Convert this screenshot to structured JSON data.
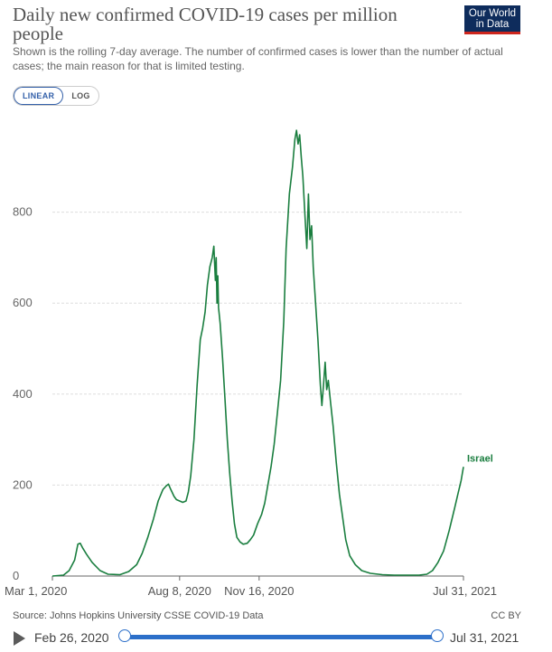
{
  "header": {
    "title": "Daily new confirmed COVID-19 cases per million people",
    "subtitle": "Shown is the rolling 7-day average. The number of confirmed cases is lower than the number of actual cases; the main reason for that is limited testing.",
    "logo_line1": "Our World",
    "logo_line2": "in Data"
  },
  "scale_toggle": {
    "linear_label": "LINEAR",
    "log_label": "LOG",
    "selected": "linear"
  },
  "footer": {
    "source": "Source: Johns Hopkins University CSSE COVID-19 Data",
    "license": "CC BY"
  },
  "timeline": {
    "start_label": "Feb 26, 2020",
    "end_label": "Jul 31, 2021"
  },
  "colors": {
    "series": "#1a7e3f",
    "grid": "#dddddd",
    "axis": "#666666",
    "logo_bg": "#0e2c5c",
    "logo_accent": "#ce261e",
    "slider": "#2c6fc9"
  },
  "chart_data": {
    "type": "line",
    "title": "Daily new confirmed COVID-19 cases per million people",
    "xlabel": "",
    "ylabel": "",
    "xlim": [
      "2020-03-01",
      "2021-07-31"
    ],
    "ylim": [
      0,
      1000
    ],
    "yticks": [
      0,
      200,
      400,
      600,
      800
    ],
    "xtick_labels": [
      {
        "date": "2020-03-01",
        "label": "Mar 1, 2020"
      },
      {
        "date": "2020-08-08",
        "label": "Aug 8, 2020"
      },
      {
        "date": "2020-11-16",
        "label": "Nov 16, 2020"
      },
      {
        "date": "2021-07-31",
        "label": "Jul 31, 2021"
      }
    ],
    "grid": true,
    "series": [
      {
        "name": "Israel",
        "points": [
          [
            "2020-03-01",
            0
          ],
          [
            "2020-03-15",
            2
          ],
          [
            "2020-03-22",
            12
          ],
          [
            "2020-03-29",
            35
          ],
          [
            "2020-04-02",
            70
          ],
          [
            "2020-04-05",
            72
          ],
          [
            "2020-04-08",
            62
          ],
          [
            "2020-04-13",
            48
          ],
          [
            "2020-04-20",
            30
          ],
          [
            "2020-04-30",
            12
          ],
          [
            "2020-05-10",
            4
          ],
          [
            "2020-05-25",
            3
          ],
          [
            "2020-06-05",
            10
          ],
          [
            "2020-06-15",
            25
          ],
          [
            "2020-06-22",
            50
          ],
          [
            "2020-06-29",
            85
          ],
          [
            "2020-07-06",
            125
          ],
          [
            "2020-07-12",
            165
          ],
          [
            "2020-07-18",
            190
          ],
          [
            "2020-07-22",
            198
          ],
          [
            "2020-07-25",
            202
          ],
          [
            "2020-07-28",
            190
          ],
          [
            "2020-08-01",
            175
          ],
          [
            "2020-08-04",
            168
          ],
          [
            "2020-08-08",
            165
          ],
          [
            "2020-08-12",
            162
          ],
          [
            "2020-08-16",
            165
          ],
          [
            "2020-08-19",
            185
          ],
          [
            "2020-08-22",
            220
          ],
          [
            "2020-08-26",
            300
          ],
          [
            "2020-08-30",
            420
          ],
          [
            "2020-09-03",
            520
          ],
          [
            "2020-09-06",
            545
          ],
          [
            "2020-09-09",
            580
          ],
          [
            "2020-09-12",
            640
          ],
          [
            "2020-09-15",
            680
          ],
          [
            "2020-09-18",
            700
          ],
          [
            "2020-09-20",
            725
          ],
          [
            "2020-09-22",
            650
          ],
          [
            "2020-09-23",
            700
          ],
          [
            "2020-09-24",
            600
          ],
          [
            "2020-09-25",
            660
          ],
          [
            "2020-09-26",
            590
          ],
          [
            "2020-09-28",
            555
          ],
          [
            "2020-10-01",
            480
          ],
          [
            "2020-10-04",
            390
          ],
          [
            "2020-10-07",
            300
          ],
          [
            "2020-10-10",
            225
          ],
          [
            "2020-10-13",
            165
          ],
          [
            "2020-10-16",
            115
          ],
          [
            "2020-10-19",
            85
          ],
          [
            "2020-10-23",
            75
          ],
          [
            "2020-10-27",
            70
          ],
          [
            "2020-11-01",
            72
          ],
          [
            "2020-11-05",
            80
          ],
          [
            "2020-11-09",
            90
          ],
          [
            "2020-11-14",
            115
          ],
          [
            "2020-11-19",
            135
          ],
          [
            "2020-11-23",
            160
          ],
          [
            "2020-11-27",
            200
          ],
          [
            "2020-12-01",
            240
          ],
          [
            "2020-12-05",
            290
          ],
          [
            "2020-12-09",
            360
          ],
          [
            "2020-12-13",
            430
          ],
          [
            "2020-12-17",
            560
          ],
          [
            "2020-12-20",
            720
          ],
          [
            "2020-12-24",
            840
          ],
          [
            "2020-12-28",
            900
          ],
          [
            "2020-12-31",
            960
          ],
          [
            "2021-01-02",
            980
          ],
          [
            "2021-01-04",
            950
          ],
          [
            "2021-01-06",
            970
          ],
          [
            "2021-01-08",
            920
          ],
          [
            "2021-01-10",
            880
          ],
          [
            "2021-01-13",
            780
          ],
          [
            "2021-01-15",
            720
          ],
          [
            "2021-01-17",
            840
          ],
          [
            "2021-01-19",
            740
          ],
          [
            "2021-01-21",
            770
          ],
          [
            "2021-01-23",
            680
          ],
          [
            "2021-01-26",
            600
          ],
          [
            "2021-01-29",
            520
          ],
          [
            "2021-02-01",
            420
          ],
          [
            "2021-02-03",
            375
          ],
          [
            "2021-02-05",
            420
          ],
          [
            "2021-02-07",
            470
          ],
          [
            "2021-02-09",
            410
          ],
          [
            "2021-02-11",
            430
          ],
          [
            "2021-02-14",
            380
          ],
          [
            "2021-02-17",
            330
          ],
          [
            "2021-02-21",
            250
          ],
          [
            "2021-02-25",
            180
          ],
          [
            "2021-03-01",
            130
          ],
          [
            "2021-03-05",
            80
          ],
          [
            "2021-03-10",
            45
          ],
          [
            "2021-03-17",
            25
          ],
          [
            "2021-03-25",
            12
          ],
          [
            "2021-04-05",
            6
          ],
          [
            "2021-04-20",
            3
          ],
          [
            "2021-05-05",
            2
          ],
          [
            "2021-05-20",
            2
          ],
          [
            "2021-06-05",
            2
          ],
          [
            "2021-06-15",
            4
          ],
          [
            "2021-06-22",
            12
          ],
          [
            "2021-06-29",
            30
          ],
          [
            "2021-07-06",
            55
          ],
          [
            "2021-07-13",
            100
          ],
          [
            "2021-07-20",
            150
          ],
          [
            "2021-07-24",
            180
          ],
          [
            "2021-07-28",
            210
          ],
          [
            "2021-07-31",
            240
          ]
        ]
      }
    ]
  }
}
